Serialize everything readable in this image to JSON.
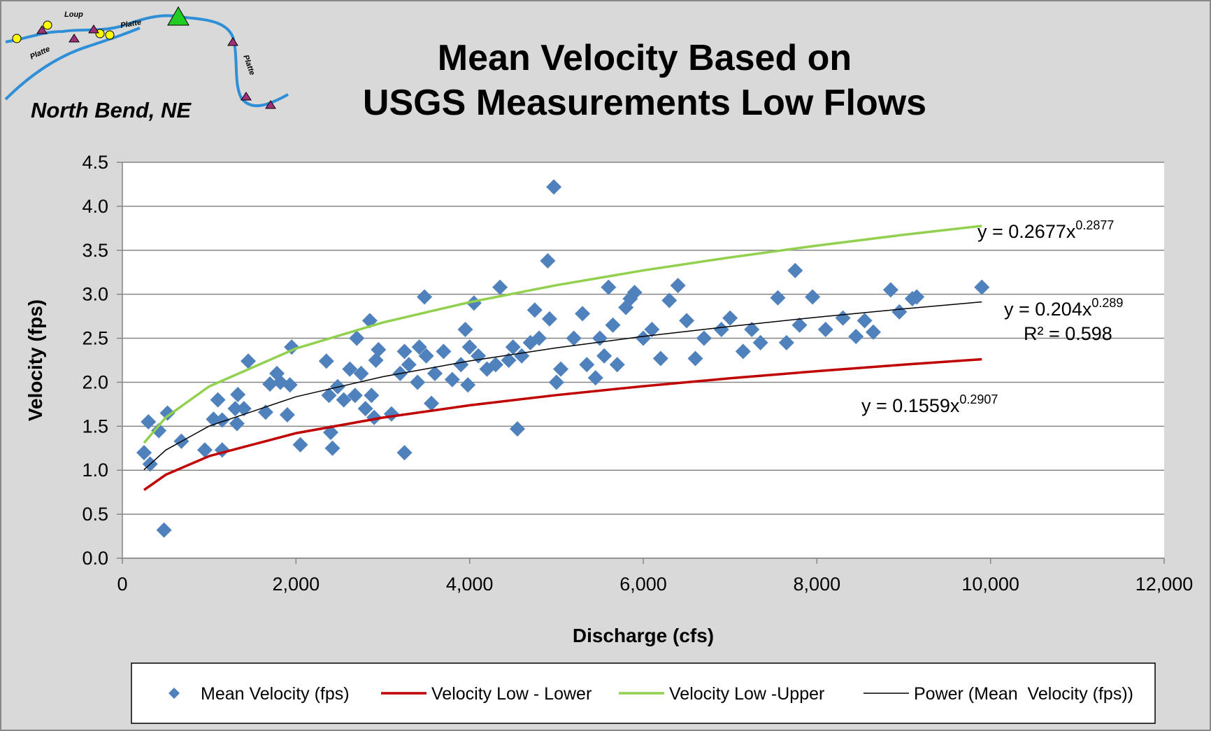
{
  "map": {
    "location": "North Bend, NE",
    "river_labels": [
      "Loup",
      "Platte",
      "Platte",
      "Platte"
    ]
  },
  "chart_data": {
    "type": "scatter",
    "title": [
      "Mean Velocity Based on",
      "USGS Measurements Low Flows"
    ],
    "xlabel": "Discharge (cfs)",
    "ylabel": "Velocity (fps)",
    "xlim": [
      0,
      12000
    ],
    "ylim": [
      0,
      4.5
    ],
    "xticks": [
      0,
      {
        "value": 2000,
        "label": "2,000"
      },
      {
        "value": 4000,
        "label": "4,000"
      },
      {
        "value": 6000,
        "label": "6,000"
      },
      {
        "value": 8000,
        "label": "8,000"
      },
      {
        "value": 10000,
        "label": "10,000"
      },
      {
        "value": 12000,
        "label": "12,000"
      }
    ],
    "yticks": [
      {
        "value": 0,
        "label": "0.0"
      },
      0.5,
      {
        "value": 1,
        "label": "1.0"
      },
      1.5,
      {
        "value": 2,
        "label": "2.0"
      },
      2.5,
      {
        "value": 3,
        "label": "3.0"
      },
      3.5,
      {
        "value": 4,
        "label": "4.0"
      },
      4.5
    ],
    "grid": true,
    "legend": "bottom",
    "series": [
      {
        "name": "Mean Velocity (fps)",
        "type": "scatter",
        "color": "#4f81bd",
        "x": [
          250,
          300,
          320,
          420,
          480,
          520,
          680,
          950,
          1050,
          1100,
          1150,
          1150,
          1300,
          1320,
          1330,
          1400,
          1450,
          1650,
          1700,
          1780,
          1820,
          1900,
          1930,
          1950,
          2050,
          2350,
          2380,
          2400,
          2420,
          2480,
          2550,
          2620,
          2680,
          2700,
          2750,
          2800,
          2850,
          2870,
          2900,
          2920,
          2950,
          3100,
          3200,
          3250,
          3250,
          3300,
          3400,
          3420,
          3480,
          3500,
          3560,
          3600,
          3700,
          3800,
          3900,
          3950,
          3980,
          4000,
          4050,
          4100,
          4200,
          4300,
          4350,
          4450,
          4500,
          4550,
          4600,
          4700,
          4750,
          4800,
          4900,
          4920,
          4970,
          5000,
          5050,
          5200,
          5300,
          5350,
          5450,
          5500,
          5550,
          5600,
          5650,
          5700,
          5800,
          5850,
          5900,
          6000,
          6100,
          6200,
          6300,
          6400,
          6500,
          6600,
          6700,
          6900,
          7000,
          7150,
          7250,
          7350,
          7550,
          7650,
          7750,
          7800,
          7950,
          8100,
          8300,
          8450,
          8550,
          8650,
          8850,
          8950,
          9100,
          9150,
          9900
        ],
        "values": [
          1.2,
          1.55,
          1.07,
          1.45,
          0.32,
          1.65,
          1.33,
          1.23,
          1.58,
          1.8,
          1.57,
          1.23,
          1.7,
          1.53,
          1.86,
          1.7,
          2.24,
          1.66,
          1.98,
          2.1,
          2.0,
          1.63,
          1.97,
          2.4,
          1.29,
          2.24,
          1.85,
          1.43,
          1.25,
          1.95,
          1.8,
          2.15,
          1.85,
          2.5,
          2.1,
          1.7,
          2.7,
          1.85,
          1.6,
          2.25,
          2.37,
          1.64,
          2.1,
          1.2,
          2.35,
          2.2,
          2.0,
          2.4,
          2.97,
          2.3,
          1.76,
          2.1,
          2.35,
          2.03,
          2.2,
          2.6,
          1.97,
          2.4,
          2.9,
          2.3,
          2.15,
          2.2,
          3.08,
          2.25,
          2.4,
          1.47,
          2.3,
          2.45,
          2.82,
          2.5,
          3.38,
          2.72,
          4.22,
          2.0,
          2.15,
          2.5,
          2.78,
          2.2,
          2.05,
          2.5,
          2.3,
          3.08,
          2.65,
          2.2,
          2.85,
          2.95,
          3.02,
          2.5,
          2.6,
          2.27,
          2.93,
          3.1,
          2.7,
          2.27,
          2.5,
          2.6,
          2.73,
          2.35,
          2.6,
          2.45,
          2.96,
          2.45,
          3.27,
          2.65,
          2.97,
          2.6,
          2.73,
          2.52,
          2.7,
          2.57,
          3.05,
          2.8,
          2.95,
          2.97,
          3.08
        ]
      },
      {
        "name": "Velocity Low - Lower",
        "type": "line",
        "color": "#c00000",
        "x": [
          250,
          500,
          1000,
          2000,
          3000,
          4000,
          5000,
          6000,
          7000,
          8000,
          9000,
          9900
        ],
        "values": [
          0.776,
          0.949,
          1.161,
          1.421,
          1.598,
          1.738,
          1.854,
          1.955,
          2.045,
          2.126,
          2.2,
          2.261
        ]
      },
      {
        "name": "Velocity Low -Upper",
        "type": "line",
        "color": "#92d050",
        "x": [
          250,
          500,
          1000,
          2000,
          3000,
          4000,
          5000,
          6000,
          7000,
          8000,
          9000,
          9900
        ],
        "values": [
          1.311,
          1.6,
          1.953,
          2.384,
          2.679,
          2.91,
          3.103,
          3.271,
          3.419,
          3.553,
          3.676,
          3.777
        ]
      },
      {
        "name": "Power (Mean  Velocity (fps))",
        "type": "line",
        "color": "#000000",
        "x": [
          250,
          500,
          1000,
          2000,
          3000,
          4000,
          5000,
          6000,
          7000,
          8000,
          9000,
          9900
        ],
        "values": [
          1.006,
          1.229,
          1.502,
          1.835,
          2.063,
          2.242,
          2.391,
          2.521,
          2.635,
          2.739,
          2.834,
          2.913
        ]
      }
    ],
    "annotations": [
      {
        "text": "y = 0.2677x",
        "superscript": "0.2877"
      },
      {
        "text": "y = 0.204x",
        "superscript": "0.289"
      },
      {
        "text": "R² = 0.598"
      },
      {
        "text": "y = 0.1559x",
        "superscript": "0.2907"
      }
    ]
  }
}
